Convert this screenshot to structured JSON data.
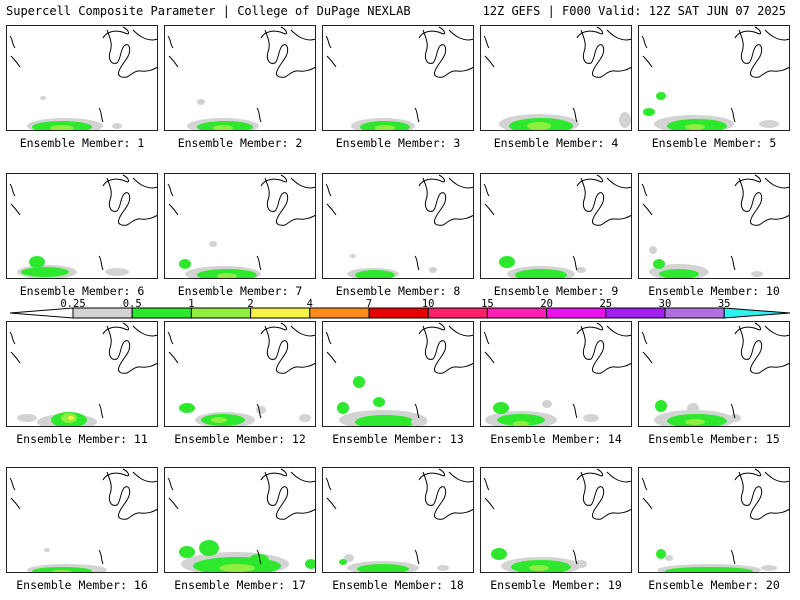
{
  "header": {
    "title_left": "Supercell Composite Parameter | College of DuPage NEXLAB",
    "title_right": "12Z GEFS | F000 Valid: 12Z SAT JUN 07 2025"
  },
  "panels": [
    {
      "label": "Ensemble Member: 1"
    },
    {
      "label": "Ensemble Member: 2"
    },
    {
      "label": "Ensemble Member: 3"
    },
    {
      "label": "Ensemble Member: 4"
    },
    {
      "label": "Ensemble Member: 5"
    },
    {
      "label": "Ensemble Member: 6"
    },
    {
      "label": "Ensemble Member: 7"
    },
    {
      "label": "Ensemble Member: 8"
    },
    {
      "label": "Ensemble Member: 9"
    },
    {
      "label": "Ensemble Member: 10"
    },
    {
      "label": "Ensemble Member: 11"
    },
    {
      "label": "Ensemble Member: 12"
    },
    {
      "label": "Ensemble Member: 13"
    },
    {
      "label": "Ensemble Member: 14"
    },
    {
      "label": "Ensemble Member: 15"
    },
    {
      "label": "Ensemble Member: 16"
    },
    {
      "label": "Ensemble Member: 17"
    },
    {
      "label": "Ensemble Member: 18"
    },
    {
      "label": "Ensemble Member: 19"
    },
    {
      "label": "Ensemble Member: 20"
    }
  ],
  "colorbar": {
    "ticks": [
      "0.25",
      "0.5",
      "1",
      "2",
      "4",
      "7",
      "10",
      "15",
      "20",
      "25",
      "30",
      "35"
    ],
    "colors": [
      "#d3d3d3",
      "#2ee82e",
      "#90ee40",
      "#f5f542",
      "#ff8c1a",
      "#e80000",
      "#ff1f6a",
      "#ff1fb4",
      "#ee10ee",
      "#a020f0",
      "#b070e0",
      "#30f0f0"
    ]
  }
}
